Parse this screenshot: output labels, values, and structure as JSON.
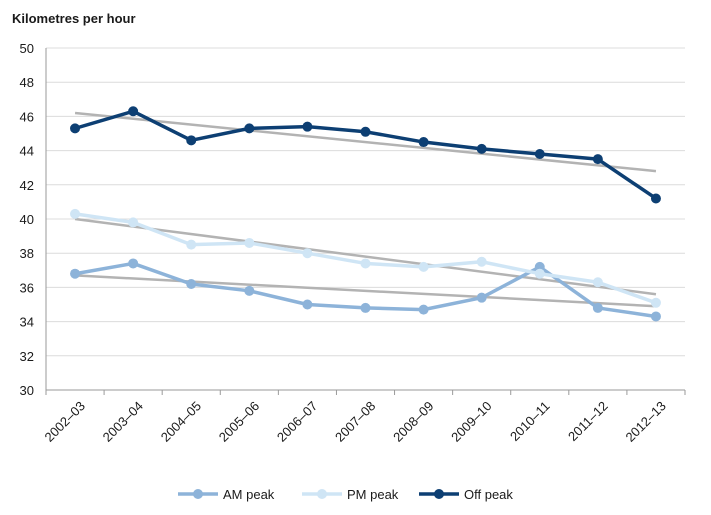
{
  "chart_data": {
    "type": "line",
    "ylabel": "Kilometres per hour",
    "xlabel": "",
    "ylim": [
      30,
      50
    ],
    "ytick_step": 2,
    "grid": true,
    "legend_position": "bottom",
    "categories": [
      "2002–03",
      "2003–04",
      "2004–05",
      "2005–06",
      "2006–07",
      "2007–08",
      "2008–09",
      "2009–10",
      "2010–11",
      "2011–12",
      "2012–13"
    ],
    "series": [
      {
        "name": "AM peak",
        "color": "#8db3d9",
        "values": [
          36.8,
          37.4,
          36.2,
          35.8,
          35.0,
          34.8,
          34.7,
          35.4,
          37.2,
          34.8,
          34.3
        ],
        "trend": [
          36.7,
          34.9
        ]
      },
      {
        "name": "PM peak",
        "color": "#cfe5f5",
        "values": [
          40.3,
          39.8,
          38.5,
          38.6,
          38.0,
          37.4,
          37.2,
          37.5,
          36.8,
          36.3,
          35.1
        ],
        "trend": [
          40.0,
          35.6
        ]
      },
      {
        "name": "Off peak",
        "color": "#0d3f73",
        "values": [
          45.3,
          46.3,
          44.6,
          45.3,
          45.4,
          45.1,
          44.5,
          44.1,
          43.8,
          43.5,
          41.2
        ],
        "trend": [
          46.2,
          42.8
        ]
      }
    ],
    "trend_color": "#b3b3b3"
  }
}
